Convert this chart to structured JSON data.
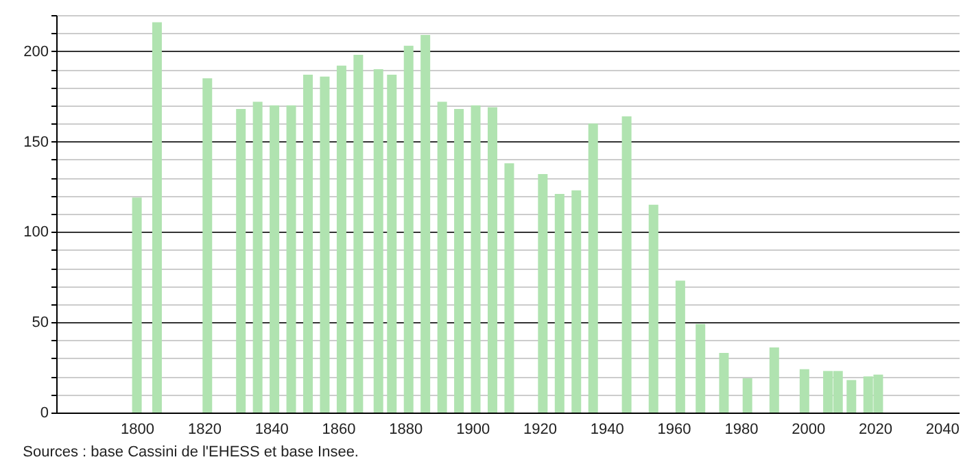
{
  "chart_data": {
    "type": "bar",
    "x": [
      1800,
      1806,
      1821,
      1831,
      1836,
      1841,
      1846,
      1851,
      1856,
      1861,
      1866,
      1872,
      1876,
      1881,
      1886,
      1891,
      1896,
      1901,
      1906,
      1911,
      1921,
      1926,
      1931,
      1936,
      1946,
      1954,
      1962,
      1968,
      1975,
      1982,
      1990,
      1999,
      2006,
      2009,
      2013,
      2018,
      2021
    ],
    "values": [
      119,
      216,
      185,
      168,
      172,
      170,
      170,
      187,
      186,
      192,
      198,
      190,
      187,
      203,
      209,
      172,
      168,
      170,
      169,
      138,
      132,
      121,
      123,
      160,
      164,
      115,
      73,
      49,
      33,
      19,
      36,
      24,
      23,
      23,
      18,
      20,
      21
    ],
    "color": "#b0e3b0",
    "xlim": [
      1778,
      2043
    ],
    "xticks": [
      1800,
      1820,
      1840,
      1860,
      1880,
      1900,
      1920,
      1940,
      1960,
      1980,
      2000,
      2020,
      2040
    ],
    "ylim": [
      0,
      220
    ],
    "yticks": [
      0,
      {
        "value": 10,
        "label": null
      },
      {
        "value": 20,
        "label": null
      },
      {
        "value": 30,
        "label": null
      },
      {
        "value": 40,
        "label": null
      },
      50,
      {
        "value": 60,
        "label": null
      },
      {
        "value": 70,
        "label": null
      },
      {
        "value": 80,
        "label": null
      },
      {
        "value": 90,
        "label": null
      },
      100,
      {
        "value": 110,
        "label": null
      },
      {
        "value": 120,
        "label": null
      },
      {
        "value": 130,
        "label": null
      },
      {
        "value": 140,
        "label": null
      },
      150,
      {
        "value": 160,
        "label": null
      },
      {
        "value": 170,
        "label": null
      },
      {
        "value": 180,
        "label": null
      },
      {
        "value": 190,
        "label": null
      },
      200,
      {
        "value": 210,
        "label": null
      },
      {
        "value": 220,
        "label": null
      }
    ],
    "grid": "y",
    "annotations": [
      "Sources : base Cassini de l'EHESS et base Insee."
    ]
  }
}
